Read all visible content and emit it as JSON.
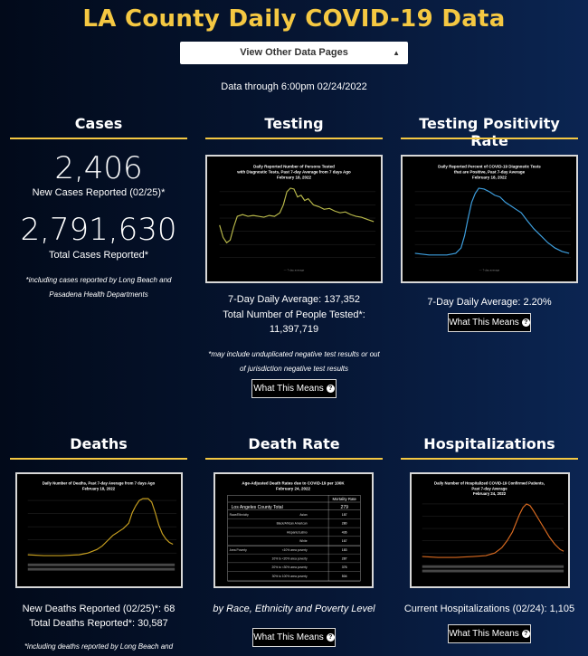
{
  "header": {
    "title": "LA County Daily COVID-19 Data",
    "select_label": "View Other Data Pages",
    "data_through": "Data through 6:00pm 02/24/2022"
  },
  "colors": {
    "accent": "#f5c842",
    "testing_line": "#b8b84a",
    "positivity_line": "#3ea0e0",
    "deaths_line": "#c8a020",
    "hosp_line": "#d86a20"
  },
  "cases": {
    "title": "Cases",
    "new_count": "2,406",
    "new_label": "New Cases Reported (02/25)*",
    "total_count": "2,791,630",
    "total_label": "Total Cases Reported*",
    "note": "*including cases reported by Long Beach and Pasadena Health Departments"
  },
  "testing": {
    "title": "Testing",
    "chart_title_1": "Daily Reported Number of Persons Tested",
    "chart_title_2": "with Diagnostic Tests, Past 7-day Average from 7 days Ago",
    "chart_title_3": "February 18, 2022",
    "avg": "7-Day Daily Average: 137,352",
    "total_label": "Total Number of People Tested*:",
    "total_value": "11,397,719",
    "note": "*may include unduplicated negative test results or out of jurisdiction negative test results",
    "button": "What This Means"
  },
  "positivity": {
    "title": "Testing Positivity Rate",
    "chart_title_1": "Daily Reported Percent of COVID-19 Diagnostic Tests",
    "chart_title_2": "that are Positive, Past 7-day Average",
    "chart_title_3": "February 18, 2022",
    "avg": "7-Day Daily Average: 2.20%",
    "button": "What This Means"
  },
  "deaths": {
    "title": "Deaths",
    "chart_title_1": "Daily Number of Deaths, Past 7-day Average from 7 days Ago",
    "chart_title_2": "February 18, 2022",
    "new_label": "New Deaths Reported (02/25)*: 68",
    "total_label": "Total Deaths Reported*: 30,587",
    "note": "*including deaths reported by Long Beach and"
  },
  "death_rate": {
    "title": "Death Rate",
    "chart_title_1": "Age-Adjusted Death Rates due to COVID-19 per 100K",
    "chart_title_2": "February 24, 2022",
    "table_header": "Mortality Rate",
    "county_label": "Los Angeles County Total",
    "county_value": "279",
    "rows": [
      {
        "group": "Race/Ethnicity",
        "label": "Asian",
        "value": "187"
      },
      {
        "group": "",
        "label": "Black/African American",
        "value": "280"
      },
      {
        "group": "",
        "label": "Hispanic/Latino",
        "value": "436"
      },
      {
        "group": "",
        "label": "White",
        "value": "167"
      },
      {
        "group": "Area Poverty",
        "label": "<10% area poverty",
        "value": "183"
      },
      {
        "group": "",
        "label": "10% to <20% area poverty",
        "value": "287"
      },
      {
        "group": "",
        "label": "20% to <30% area poverty",
        "value": "376"
      },
      {
        "group": "",
        "label": "30% to 100% area poverty",
        "value": "504"
      }
    ],
    "caption": "by Race, Ethnicity and Poverty Level",
    "button": "What This Means"
  },
  "hospitalizations": {
    "title": "Hospitalizations",
    "chart_title_1": "Daily Number of Hospitalized COVID-19 Confirmed Patients,",
    "chart_title_2": "Past 7-day Average",
    "chart_title_3": "February 24, 2022",
    "current": "Current Hospitalizations (02/24): 1,105",
    "button": "What This Means"
  }
}
